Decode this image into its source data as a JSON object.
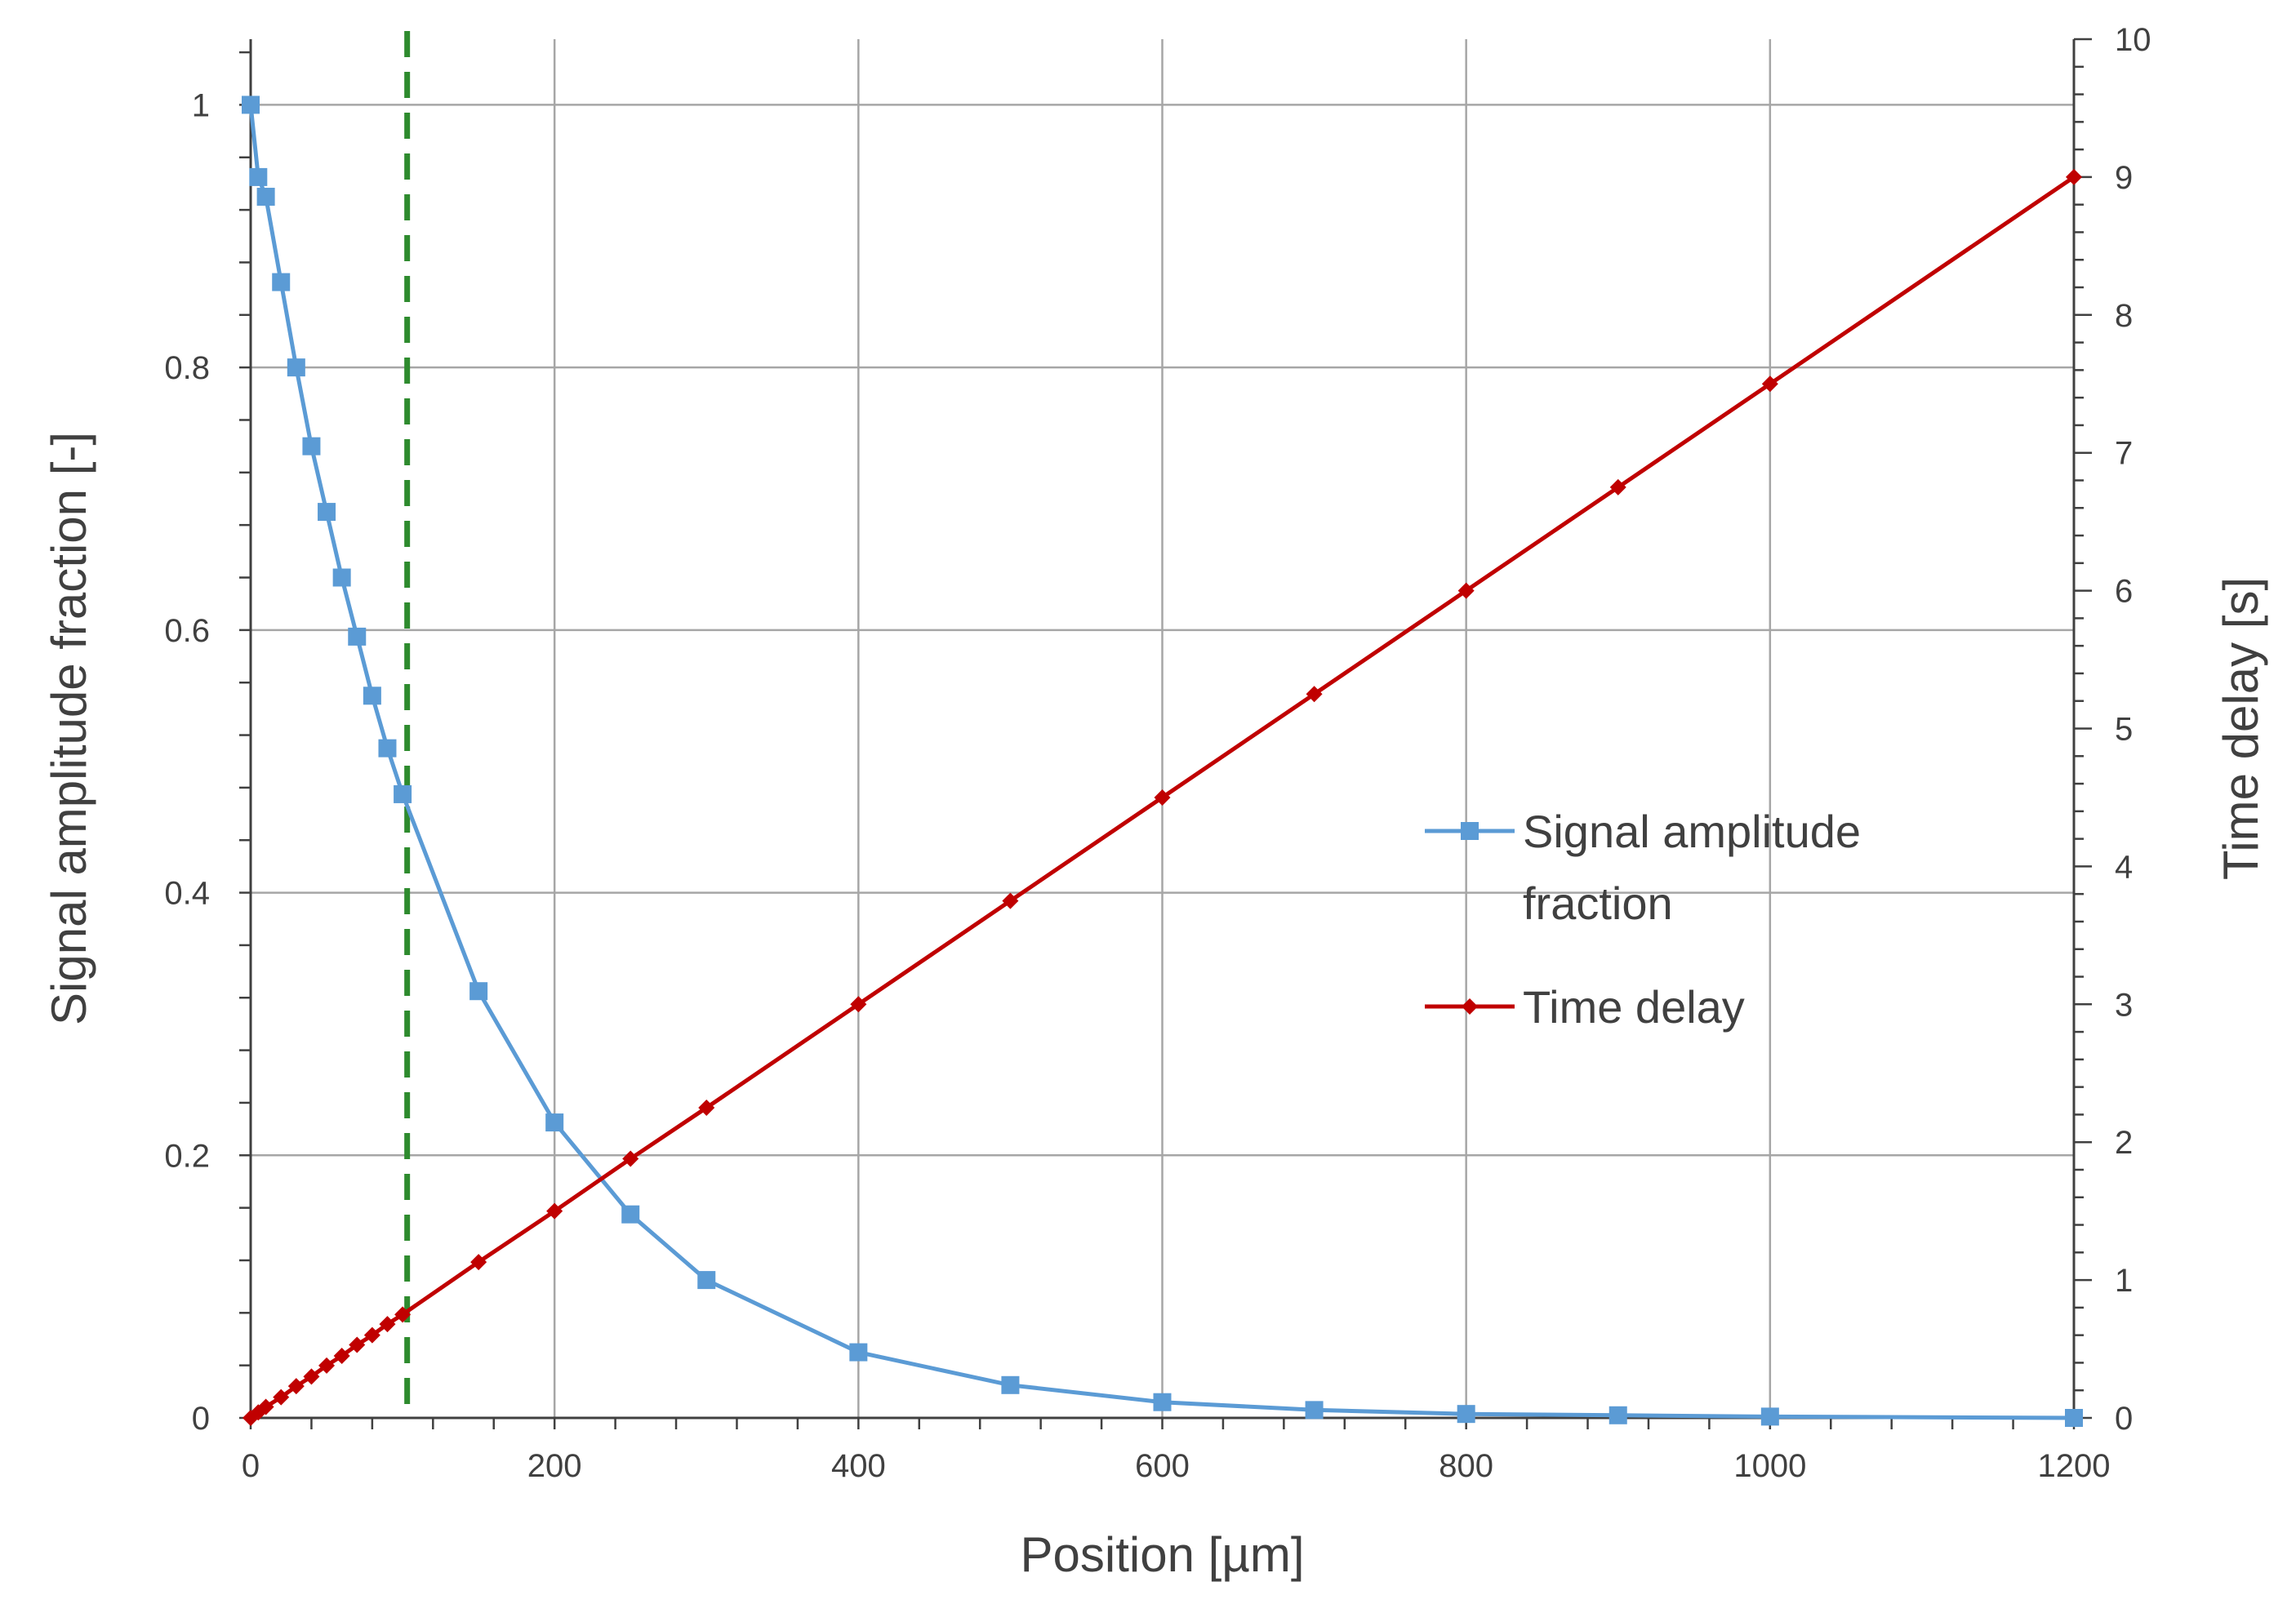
{
  "chart_data": {
    "type": "line",
    "title": "",
    "xlabel": "Position [µm]",
    "ylabel": "Signal amplitude fraction [-]",
    "y2label": "Time delay [s]",
    "xlim": [
      0,
      1200
    ],
    "ylim": [
      0,
      1.05
    ],
    "y2lim": [
      0,
      10
    ],
    "x_ticks": [
      "0",
      "200",
      "400",
      "600",
      "800",
      "1000",
      "1200"
    ],
    "y_ticks": [
      "0",
      "0.2",
      "0.4",
      "0.6",
      "0.8",
      "1"
    ],
    "y2_ticks": [
      "0",
      "1",
      "2",
      "3",
      "4",
      "5",
      "6",
      "7",
      "8",
      "9",
      "10"
    ],
    "grid": true,
    "legend_position": "center-right",
    "vertical_marker": {
      "x": 103,
      "color": "#2e8b2e",
      "style": "dashed"
    },
    "series": [
      {
        "name": "Signal amplitude fraction",
        "legend_lines": [
          "Signal amplitude",
          "fraction"
        ],
        "axis": "left",
        "marker": "square",
        "color": "#5b9bd5",
        "x": [
          0,
          5,
          10,
          20,
          30,
          40,
          50,
          60,
          70,
          80,
          90,
          100,
          150,
          200,
          250,
          300,
          400,
          500,
          600,
          700,
          800,
          900,
          1000,
          1200
        ],
        "y": [
          1.0,
          0.945,
          0.93,
          0.865,
          0.8,
          0.74,
          0.69,
          0.64,
          0.595,
          0.55,
          0.51,
          0.475,
          0.325,
          0.225,
          0.155,
          0.105,
          0.05,
          0.025,
          0.012,
          0.006,
          0.003,
          0.002,
          0.001,
          0.0
        ]
      },
      {
        "name": "Time delay",
        "legend_lines": [
          "Time delay"
        ],
        "axis": "right",
        "marker": "diamond",
        "color": "#c00000",
        "x": [
          0,
          5,
          10,
          20,
          30,
          40,
          50,
          60,
          70,
          80,
          90,
          100,
          150,
          200,
          250,
          300,
          400,
          500,
          600,
          700,
          800,
          900,
          1000,
          1200
        ],
        "y": [
          0,
          0.04,
          0.08,
          0.15,
          0.23,
          0.3,
          0.38,
          0.45,
          0.53,
          0.6,
          0.68,
          0.75,
          1.13,
          1.5,
          1.88,
          2.25,
          3.0,
          3.75,
          4.5,
          5.25,
          6.0,
          6.75,
          7.5,
          9.0
        ]
      }
    ]
  }
}
